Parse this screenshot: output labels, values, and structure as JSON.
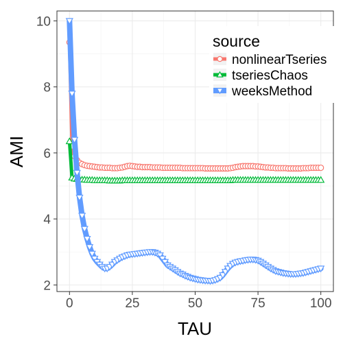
{
  "chart_data": {
    "type": "line",
    "title": "",
    "xlabel": "TAU",
    "ylabel": "AMI",
    "xlim": [
      -5,
      105
    ],
    "ylim": [
      1.8,
      10.3
    ],
    "x_ticks": [
      0,
      25,
      50,
      75,
      100
    ],
    "y_ticks": [
      2,
      4,
      6,
      8,
      10
    ],
    "grid": true,
    "legend": {
      "title": "source",
      "position": "top-right"
    },
    "series": [
      {
        "name": "nonlinearTseries",
        "color": "#F8766D",
        "marker": "circle",
        "x": [
          0,
          1,
          2,
          3,
          4,
          5,
          6,
          7,
          8,
          9,
          10,
          11,
          12,
          13,
          14,
          15,
          16,
          17,
          18,
          19,
          20,
          21,
          22,
          23,
          24,
          25,
          26,
          27,
          28,
          29,
          30,
          31,
          32,
          33,
          34,
          35,
          36,
          37,
          38,
          39,
          40,
          41,
          42,
          43,
          44,
          45,
          46,
          47,
          48,
          49,
          50,
          51,
          52,
          53,
          54,
          55,
          56,
          57,
          58,
          59,
          60,
          61,
          62,
          63,
          64,
          65,
          66,
          67,
          68,
          69,
          70,
          71,
          72,
          73,
          74,
          75,
          76,
          77,
          78,
          79,
          80,
          81,
          82,
          83,
          84,
          85,
          86,
          87,
          88,
          89,
          90,
          91,
          92,
          93,
          94,
          95,
          96,
          97,
          98,
          99,
          100
        ],
        "y": [
          9.35,
          6.2,
          5.9,
          5.78,
          5.7,
          5.66,
          5.63,
          5.61,
          5.6,
          5.59,
          5.58,
          5.57,
          5.56,
          5.56,
          5.55,
          5.55,
          5.55,
          5.54,
          5.54,
          5.54,
          5.55,
          5.56,
          5.58,
          5.6,
          5.61,
          5.6,
          5.59,
          5.58,
          5.58,
          5.57,
          5.57,
          5.57,
          5.57,
          5.56,
          5.56,
          5.56,
          5.56,
          5.55,
          5.55,
          5.55,
          5.55,
          5.55,
          5.55,
          5.55,
          5.55,
          5.54,
          5.54,
          5.54,
          5.54,
          5.54,
          5.54,
          5.54,
          5.54,
          5.54,
          5.53,
          5.53,
          5.53,
          5.53,
          5.53,
          5.53,
          5.53,
          5.53,
          5.53,
          5.53,
          5.54,
          5.55,
          5.57,
          5.58,
          5.59,
          5.6,
          5.6,
          5.6,
          5.6,
          5.6,
          5.59,
          5.59,
          5.58,
          5.57,
          5.56,
          5.56,
          5.55,
          5.55,
          5.54,
          5.54,
          5.54,
          5.54,
          5.54,
          5.53,
          5.53,
          5.53,
          5.53,
          5.53,
          5.53,
          5.54,
          5.54,
          5.54,
          5.55,
          5.55,
          5.55,
          5.55,
          5.55
        ]
      },
      {
        "name": "tseriesChaos",
        "color": "#00BA38",
        "marker": "triangle-up",
        "x": [
          0,
          1,
          2,
          3,
          4,
          5,
          6,
          7,
          8,
          9,
          10,
          11,
          12,
          13,
          14,
          15,
          16,
          17,
          18,
          19,
          20,
          21,
          22,
          23,
          24,
          25,
          26,
          27,
          28,
          29,
          30,
          31,
          32,
          33,
          34,
          35,
          36,
          37,
          38,
          39,
          40,
          41,
          42,
          43,
          44,
          45,
          46,
          47,
          48,
          49,
          50,
          51,
          52,
          53,
          54,
          55,
          56,
          57,
          58,
          59,
          60,
          61,
          62,
          63,
          64,
          65,
          66,
          67,
          68,
          69,
          70,
          71,
          72,
          73,
          74,
          75,
          76,
          77,
          78,
          79,
          80,
          81,
          82,
          83,
          84,
          85,
          86,
          87,
          88,
          89,
          90,
          91,
          92,
          93,
          94,
          95,
          96,
          97,
          98,
          99,
          100
        ],
        "y": [
          6.35,
          5.25,
          5.22,
          5.21,
          5.2,
          5.19,
          5.19,
          5.18,
          5.18,
          5.18,
          5.17,
          5.17,
          5.17,
          5.17,
          5.17,
          5.17,
          5.16,
          5.16,
          5.16,
          5.16,
          5.16,
          5.17,
          5.17,
          5.17,
          5.17,
          5.17,
          5.17,
          5.17,
          5.17,
          5.17,
          5.17,
          5.17,
          5.17,
          5.17,
          5.17,
          5.17,
          5.17,
          5.17,
          5.17,
          5.17,
          5.17,
          5.17,
          5.17,
          5.17,
          5.17,
          5.17,
          5.17,
          5.17,
          5.17,
          5.17,
          5.17,
          5.17,
          5.17,
          5.17,
          5.17,
          5.17,
          5.17,
          5.17,
          5.17,
          5.17,
          5.17,
          5.17,
          5.17,
          5.17,
          5.17,
          5.18,
          5.18,
          5.18,
          5.18,
          5.18,
          5.18,
          5.18,
          5.18,
          5.18,
          5.18,
          5.18,
          5.18,
          5.18,
          5.18,
          5.18,
          5.18,
          5.18,
          5.18,
          5.18,
          5.18,
          5.18,
          5.18,
          5.18,
          5.18,
          5.18,
          5.18,
          5.18,
          5.18,
          5.18,
          5.18,
          5.18,
          5.18,
          5.18,
          5.18,
          5.18,
          5.18
        ]
      },
      {
        "name": "weeksMethod",
        "color": "#619CFF",
        "marker": "triangle-down",
        "x": [
          0,
          1,
          2,
          3,
          4,
          5,
          6,
          7,
          8,
          9,
          10,
          11,
          12,
          13,
          14,
          15,
          16,
          17,
          18,
          19,
          20,
          21,
          22,
          23,
          24,
          25,
          26,
          27,
          28,
          29,
          30,
          31,
          32,
          33,
          34,
          35,
          36,
          37,
          38,
          39,
          40,
          41,
          42,
          43,
          44,
          45,
          46,
          47,
          48,
          49,
          50,
          51,
          52,
          53,
          54,
          55,
          56,
          57,
          58,
          59,
          60,
          61,
          62,
          63,
          64,
          65,
          66,
          67,
          68,
          69,
          70,
          71,
          72,
          73,
          74,
          75,
          76,
          77,
          78,
          79,
          80,
          81,
          82,
          83,
          84,
          85,
          86,
          87,
          88,
          89,
          90,
          91,
          92,
          93,
          94,
          95,
          96,
          97,
          98,
          99,
          100
        ],
        "y": [
          10.0,
          7.8,
          6.4,
          5.4,
          4.65,
          4.1,
          3.7,
          3.4,
          3.15,
          2.95,
          2.8,
          2.7,
          2.62,
          2.55,
          2.5,
          2.5,
          2.55,
          2.62,
          2.7,
          2.75,
          2.8,
          2.84,
          2.87,
          2.9,
          2.92,
          2.93,
          2.94,
          2.95,
          2.96,
          2.97,
          2.98,
          2.99,
          3.0,
          3.0,
          2.98,
          2.95,
          2.9,
          2.8,
          2.7,
          2.6,
          2.55,
          2.5,
          2.45,
          2.4,
          2.35,
          2.32,
          2.28,
          2.25,
          2.22,
          2.2,
          2.18,
          2.16,
          2.15,
          2.14,
          2.13,
          2.13,
          2.12,
          2.13,
          2.15,
          2.18,
          2.22,
          2.3,
          2.4,
          2.5,
          2.58,
          2.64,
          2.68,
          2.7,
          2.72,
          2.73,
          2.75,
          2.76,
          2.77,
          2.77,
          2.76,
          2.74,
          2.7,
          2.65,
          2.6,
          2.55,
          2.5,
          2.46,
          2.42,
          2.4,
          2.38,
          2.36,
          2.35,
          2.34,
          2.33,
          2.33,
          2.33,
          2.34,
          2.35,
          2.36,
          2.38,
          2.4,
          2.42,
          2.44,
          2.46,
          2.48,
          2.5
        ]
      }
    ]
  }
}
